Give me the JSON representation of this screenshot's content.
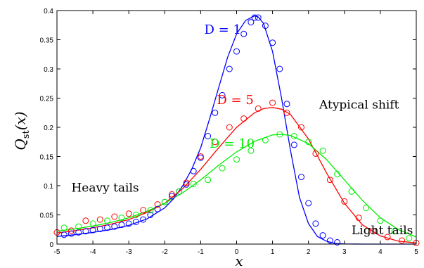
{
  "chart_data": {
    "type": "line",
    "title": "",
    "xlabel": "x",
    "ylabel_main": "Q",
    "ylabel_sub": "st",
    "ylabel_tail": "(x)",
    "xlim": [
      -5,
      5
    ],
    "ylim": [
      0,
      0.4
    ],
    "xticks": [
      -5,
      -4,
      -3,
      -2,
      -1,
      0,
      1,
      2,
      3,
      4,
      5
    ],
    "xtick_labels": [
      "-5",
      "-4",
      "-3",
      "-2",
      "-1",
      "0",
      "1",
      "2",
      "3",
      "4",
      "5"
    ],
    "yticks": [
      0,
      0.05,
      0.1,
      0.15,
      0.2,
      0.25,
      0.3,
      0.35,
      0.4
    ],
    "ytick_labels": [
      "0",
      "0.05",
      "0.1",
      "0.15",
      "0.2",
      "0.25",
      "0.3",
      "0.35",
      "0.4"
    ],
    "grid": false,
    "series": [
      {
        "name": "D = 1",
        "color": "#0000ff",
        "label_pos": [
          -0.9,
          0.36
        ],
        "line": {
          "x": [
            -5,
            -4.5,
            -4,
            -3.5,
            -3,
            -2.5,
            -2,
            -1.75,
            -1.5,
            -1.25,
            -1,
            -0.75,
            -0.5,
            -0.25,
            0,
            0.25,
            0.5,
            0.6,
            0.75,
            1,
            1.25,
            1.5,
            1.75,
            2,
            2.25,
            2.5,
            2.75,
            3,
            3.5,
            4,
            5
          ],
          "y": [
            0.013,
            0.016,
            0.02,
            0.025,
            0.032,
            0.043,
            0.062,
            0.078,
            0.1,
            0.128,
            0.165,
            0.215,
            0.268,
            0.32,
            0.36,
            0.383,
            0.391,
            0.389,
            0.378,
            0.33,
            0.25,
            0.16,
            0.08,
            0.035,
            0.013,
            0.005,
            0.001,
            0.0003,
            0,
            0,
            0
          ]
        },
        "markers": {
          "x": [
            -4.8,
            -4.6,
            -4.4,
            -4.2,
            -4.0,
            -3.8,
            -3.6,
            -3.4,
            -3.2,
            -3.0,
            -2.8,
            -2.6,
            -2.4,
            -2.2,
            -2.0,
            -1.8,
            -1.6,
            -1.4,
            -1.2,
            -1.0,
            -0.8,
            -0.6,
            -0.4,
            -0.2,
            0.0,
            0.2,
            0.4,
            0.5,
            0.6,
            0.8,
            1.0,
            1.2,
            1.4,
            1.6,
            1.8,
            2.0,
            2.2,
            2.4,
            2.6,
            2.8
          ],
          "y": [
            0.016,
            0.018,
            0.02,
            0.022,
            0.024,
            0.026,
            0.028,
            0.03,
            0.033,
            0.035,
            0.038,
            0.042,
            0.05,
            0.06,
            0.072,
            0.082,
            0.09,
            0.102,
            0.125,
            0.148,
            0.185,
            0.225,
            0.255,
            0.3,
            0.33,
            0.36,
            0.38,
            0.388,
            0.388,
            0.374,
            0.345,
            0.3,
            0.24,
            0.17,
            0.115,
            0.07,
            0.035,
            0.015,
            0.006,
            0.003
          ]
        }
      },
      {
        "name": "D = 5",
        "color": "#ff0000",
        "label_pos": [
          -0.55,
          0.24
        ],
        "line": {
          "x": [
            -5,
            -4.5,
            -4,
            -3.5,
            -3,
            -2.5,
            -2,
            -1.5,
            -1,
            -0.5,
            0,
            0.5,
            0.75,
            1,
            1.25,
            1.5,
            2,
            2.5,
            3,
            3.5,
            4,
            4.5,
            5
          ],
          "y": [
            0.019,
            0.023,
            0.028,
            0.034,
            0.042,
            0.054,
            0.07,
            0.095,
            0.128,
            0.165,
            0.2,
            0.225,
            0.232,
            0.234,
            0.231,
            0.222,
            0.18,
            0.122,
            0.07,
            0.033,
            0.014,
            0.005,
            0.002
          ]
        },
        "markers": {
          "x": [
            -5.0,
            -4.6,
            -4.2,
            -3.8,
            -3.4,
            -3.0,
            -2.6,
            -2.2,
            -1.8,
            -1.4,
            -1.0,
            -0.6,
            -0.2,
            0.2,
            0.6,
            1.0,
            1.4,
            1.8,
            2.2,
            2.6,
            3.0,
            3.4,
            3.8,
            4.2,
            4.6,
            5.0
          ],
          "y": [
            0.02,
            0.023,
            0.04,
            0.042,
            0.047,
            0.052,
            0.058,
            0.068,
            0.085,
            0.105,
            0.15,
            0.175,
            0.2,
            0.215,
            0.232,
            0.242,
            0.225,
            0.2,
            0.155,
            0.11,
            0.073,
            0.045,
            0.022,
            0.012,
            0.006,
            0.002
          ]
        }
      },
      {
        "name": "D = 10",
        "color": "#00ee00",
        "label_pos": [
          -0.75,
          0.165
        ],
        "line": {
          "x": [
            -5,
            -4.5,
            -4,
            -3.5,
            -3,
            -2.5,
            -2,
            -1.5,
            -1,
            -0.5,
            0,
            0.5,
            1,
            1.25,
            1.5,
            2,
            2.5,
            3,
            3.5,
            4,
            4.5,
            5
          ],
          "y": [
            0.022,
            0.026,
            0.031,
            0.037,
            0.045,
            0.056,
            0.07,
            0.088,
            0.11,
            0.135,
            0.158,
            0.176,
            0.187,
            0.188,
            0.186,
            0.172,
            0.145,
            0.11,
            0.075,
            0.045,
            0.025,
            0.012
          ]
        },
        "markers": {
          "x": [
            -4.8,
            -4.4,
            -4.0,
            -3.6,
            -3.2,
            -2.8,
            -2.4,
            -2.0,
            -1.6,
            -1.2,
            -0.8,
            -0.4,
            0.0,
            0.4,
            0.8,
            1.2,
            1.6,
            2.0,
            2.4,
            2.8,
            3.2,
            3.6,
            4.0,
            4.4,
            4.8
          ],
          "y": [
            0.028,
            0.03,
            0.035,
            0.04,
            0.045,
            0.05,
            0.058,
            0.072,
            0.09,
            0.103,
            0.11,
            0.13,
            0.145,
            0.16,
            0.178,
            0.188,
            0.185,
            0.175,
            0.16,
            0.12,
            0.09,
            0.062,
            0.04,
            0.022,
            0.01
          ]
        }
      }
    ],
    "annotations": [
      {
        "text": "Heavy tails",
        "pos": [
          -4.6,
          0.09
        ]
      },
      {
        "text": "Atypical shift",
        "pos": [
          2.3,
          0.232
        ]
      },
      {
        "text": "Light tails",
        "pos": [
          3.2,
          0.017
        ]
      }
    ]
  }
}
